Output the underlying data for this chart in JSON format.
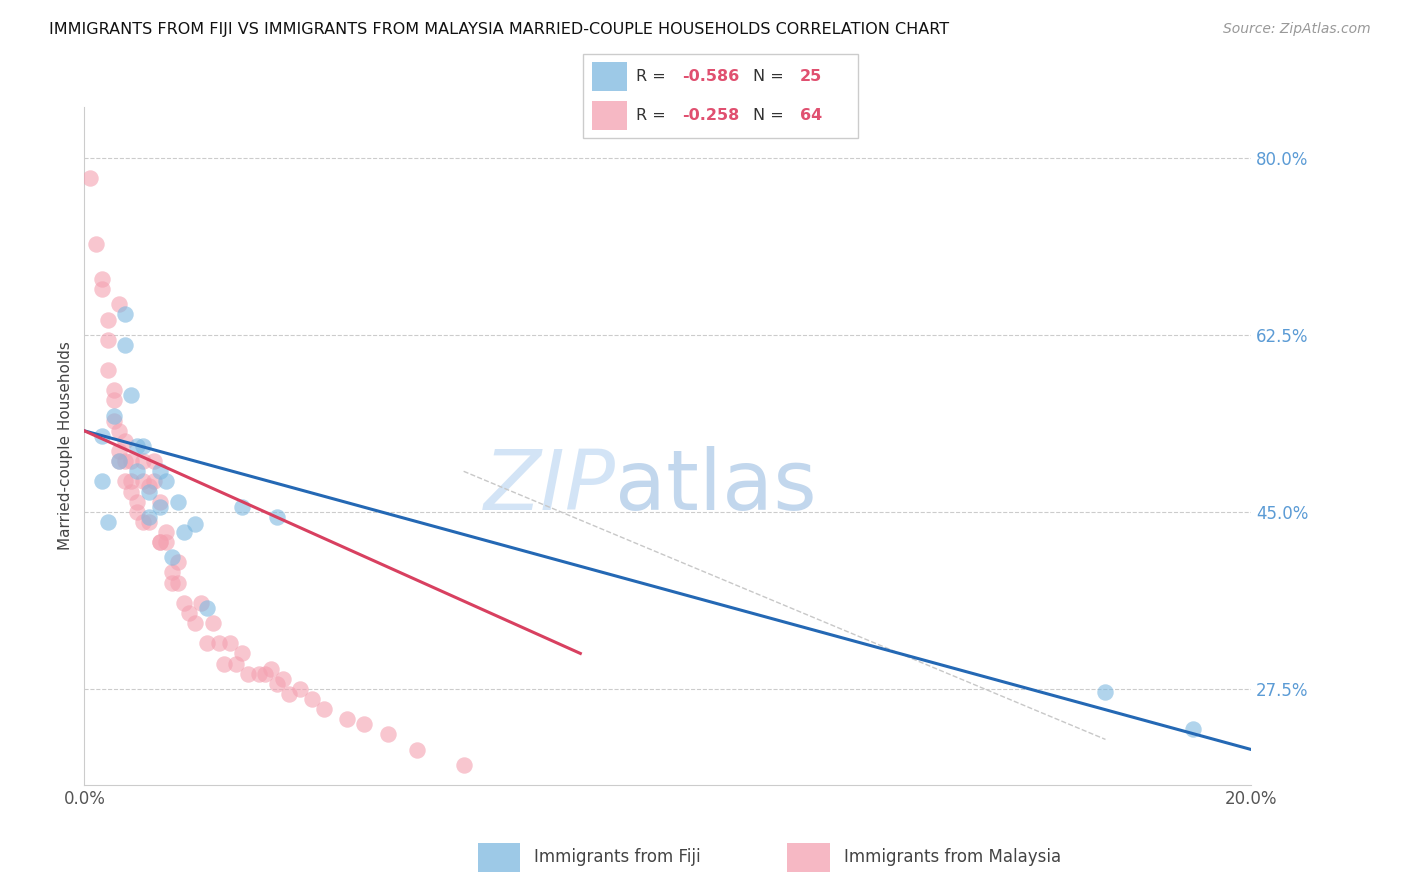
{
  "title": "IMMIGRANTS FROM FIJI VS IMMIGRANTS FROM MALAYSIA MARRIED-COUPLE HOUSEHOLDS CORRELATION CHART",
  "source": "Source: ZipAtlas.com",
  "ylabel": "Married-couple Households",
  "xlim": [
    0.0,
    0.2
  ],
  "ylim": [
    0.18,
    0.85
  ],
  "yticks": [
    0.275,
    0.45,
    0.625,
    0.8
  ],
  "ytick_labels": [
    "27.5%",
    "45.0%",
    "62.5%",
    "80.0%"
  ],
  "xticks": [
    0.0,
    0.04,
    0.08,
    0.12,
    0.16,
    0.2
  ],
  "xtick_labels": [
    "0.0%",
    "",
    "",
    "",
    "",
    "20.0%"
  ],
  "fiji_color": "#7db8e0",
  "malaysia_color": "#f4a0b0",
  "fiji_line_color": "#2468b4",
  "malaysia_line_color": "#d84060",
  "fiji_R": "-0.586",
  "fiji_N": "25",
  "malaysia_R": "-0.258",
  "malaysia_N": "64",
  "legend_fiji_label": "Immigrants from Fiji",
  "legend_malaysia_label": "Immigrants from Malaysia",
  "fiji_x": [
    0.003,
    0.003,
    0.004,
    0.005,
    0.006,
    0.007,
    0.007,
    0.008,
    0.009,
    0.009,
    0.01,
    0.011,
    0.011,
    0.013,
    0.013,
    0.014,
    0.015,
    0.016,
    0.017,
    0.019,
    0.021,
    0.027,
    0.033,
    0.175,
    0.19
  ],
  "fiji_y": [
    0.525,
    0.48,
    0.44,
    0.545,
    0.5,
    0.645,
    0.615,
    0.565,
    0.515,
    0.49,
    0.515,
    0.47,
    0.445,
    0.49,
    0.455,
    0.48,
    0.405,
    0.46,
    0.43,
    0.438,
    0.355,
    0.455,
    0.445,
    0.272,
    0.235
  ],
  "malaysia_x": [
    0.001,
    0.002,
    0.003,
    0.003,
    0.004,
    0.004,
    0.004,
    0.005,
    0.005,
    0.005,
    0.006,
    0.006,
    0.006,
    0.006,
    0.007,
    0.007,
    0.007,
    0.008,
    0.008,
    0.008,
    0.009,
    0.009,
    0.01,
    0.01,
    0.01,
    0.011,
    0.011,
    0.012,
    0.012,
    0.013,
    0.013,
    0.013,
    0.014,
    0.014,
    0.015,
    0.015,
    0.016,
    0.016,
    0.017,
    0.018,
    0.019,
    0.02,
    0.021,
    0.022,
    0.023,
    0.024,
    0.025,
    0.026,
    0.027,
    0.028,
    0.03,
    0.031,
    0.032,
    0.033,
    0.034,
    0.035,
    0.037,
    0.039,
    0.041,
    0.045,
    0.048,
    0.052,
    0.057,
    0.065
  ],
  "malaysia_y": [
    0.78,
    0.715,
    0.68,
    0.67,
    0.64,
    0.62,
    0.59,
    0.57,
    0.56,
    0.54,
    0.53,
    0.51,
    0.655,
    0.5,
    0.52,
    0.5,
    0.48,
    0.5,
    0.48,
    0.47,
    0.45,
    0.46,
    0.44,
    0.5,
    0.48,
    0.475,
    0.44,
    0.5,
    0.48,
    0.46,
    0.42,
    0.42,
    0.43,
    0.42,
    0.39,
    0.38,
    0.4,
    0.38,
    0.36,
    0.35,
    0.34,
    0.36,
    0.32,
    0.34,
    0.32,
    0.3,
    0.32,
    0.3,
    0.31,
    0.29,
    0.29,
    0.29,
    0.295,
    0.28,
    0.285,
    0.27,
    0.275,
    0.265,
    0.255,
    0.245,
    0.24,
    0.23,
    0.215,
    0.2
  ],
  "fiji_line_x0": 0.0,
  "fiji_line_y0": 0.53,
  "fiji_line_x1": 0.2,
  "fiji_line_y1": 0.215,
  "malaysia_line_x0": 0.0,
  "malaysia_line_y0": 0.53,
  "malaysia_line_x1": 0.085,
  "malaysia_line_y1": 0.31,
  "diag_line_x0": 0.065,
  "diag_line_y0": 0.49,
  "diag_line_x1": 0.175,
  "diag_line_y1": 0.225,
  "watermark_zip_color": "#cce0f5",
  "watermark_atlas_color": "#b8d0ea"
}
